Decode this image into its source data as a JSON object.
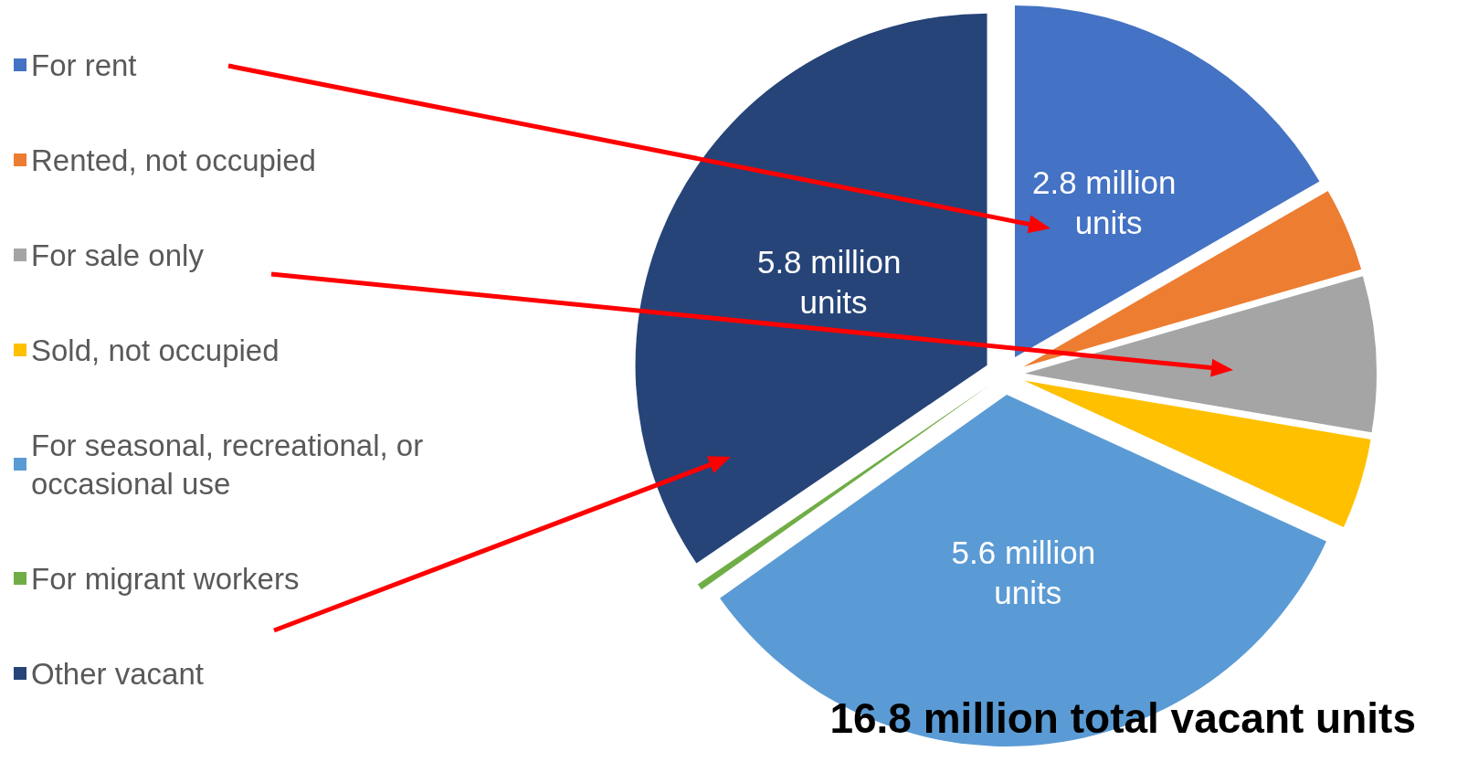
{
  "chart_data": {
    "type": "pie",
    "title": "16.8 million total vacant units",
    "categories": [
      "For rent",
      "Rented, not occupied",
      "For sale only",
      "Sold, not occupied",
      "For seasonal, recreational, or occasional use",
      "For migrant workers",
      "Other vacant"
    ],
    "values": [
      2.8,
      0.65,
      1.2,
      0.7,
      5.6,
      0.05,
      5.8
    ],
    "colors": [
      "#4472c4",
      "#ed7d31",
      "#a5a5a5",
      "#ffc000",
      "#5b9bd5",
      "#70ad47",
      "#264478"
    ],
    "value_labels": [
      "2.8 million units",
      null,
      null,
      null,
      "5.6 million units",
      null,
      "5.8 million units"
    ],
    "legend": "left"
  }
}
